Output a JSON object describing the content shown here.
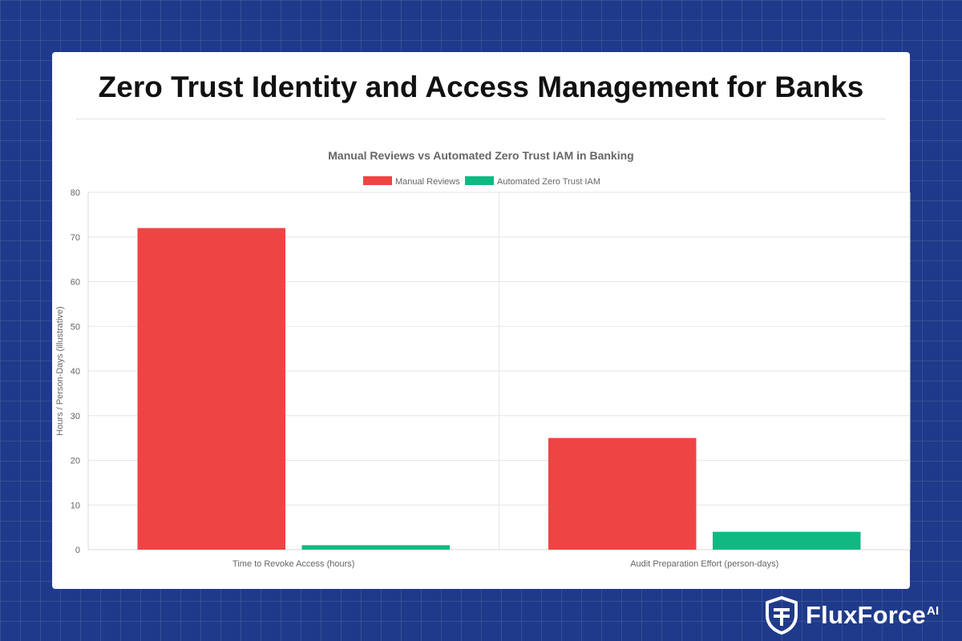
{
  "page": {
    "title": "Zero Trust Identity and Access Management for Banks"
  },
  "brand": {
    "name": "FluxForce",
    "suffix": "AI"
  },
  "chart_data": {
    "type": "bar",
    "title": "Manual Reviews vs Automated Zero Trust IAM in Banking",
    "categories": [
      "Time to Revoke Access (hours)",
      "Audit Preparation Effort (person-days)"
    ],
    "series": [
      {
        "name": "Manual Reviews",
        "values": [
          72,
          25
        ],
        "color": "#ef4444"
      },
      {
        "name": "Automated Zero Trust IAM",
        "values": [
          1,
          4
        ],
        "color": "#10b981"
      }
    ],
    "xlabel": "",
    "ylabel": "Hours / Person-Days (illustrative)",
    "ylim": [
      0,
      80
    ],
    "yticks": [
      0,
      10,
      20,
      30,
      40,
      50,
      60,
      70,
      80
    ],
    "grid": true,
    "legend": "top-center"
  }
}
